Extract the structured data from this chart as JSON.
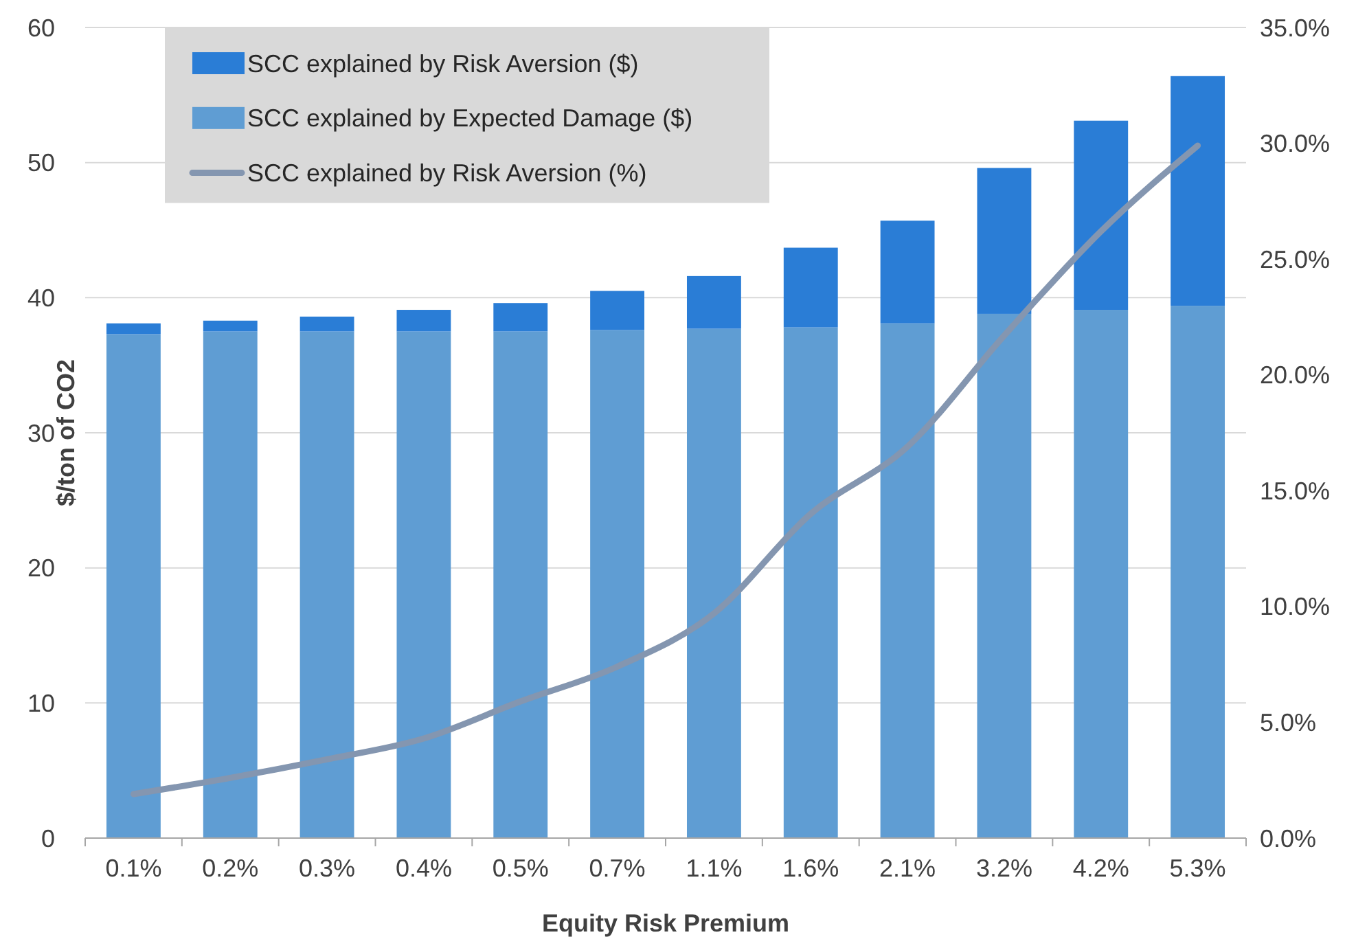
{
  "chart_data": {
    "type": "bar",
    "xlabel": "Equity Risk Premium",
    "ylabel": "$/ton of CO2",
    "categories": [
      "0.1%",
      "0.2%",
      "0.3%",
      "0.4%",
      "0.5%",
      "0.7%",
      "1.1%",
      "1.6%",
      "2.1%",
      "3.2%",
      "4.2%",
      "5.3%"
    ],
    "stacked": true,
    "series": [
      {
        "name": "SCC explained by Expected Damage ($)",
        "color": "#5f9dd3",
        "values": [
          37.3,
          37.5,
          37.5,
          37.5,
          37.5,
          37.6,
          37.7,
          37.8,
          38.1,
          38.8,
          39.1,
          39.4
        ]
      },
      {
        "name": "SCC explained by Risk Aversion ($)",
        "color": "#2a7dd6",
        "values": [
          0.8,
          0.8,
          1.1,
          1.6,
          2.1,
          2.9,
          3.9,
          5.9,
          7.6,
          10.8,
          14.0,
          17.0
        ]
      },
      {
        "name": "SCC explained by Risk Aversion (%)",
        "type": "line",
        "axis": "y2",
        "color": "#8496b0",
        "values": [
          1.9,
          2.6,
          3.4,
          4.3,
          5.9,
          7.4,
          9.7,
          14.0,
          16.9,
          21.7,
          26.2,
          29.9
        ]
      }
    ],
    "ylim": [
      0,
      60
    ],
    "yticks": [
      0,
      10,
      20,
      30,
      40,
      50,
      60
    ],
    "y2lim": [
      0,
      35
    ],
    "y2ticks": [
      {
        "value": 0,
        "label": "0.0%"
      },
      {
        "value": 5,
        "label": "5.0%"
      },
      {
        "value": 10,
        "label": "10.0%"
      },
      {
        "value": 15,
        "label": "15.0%"
      },
      {
        "value": 20,
        "label": "20.0%"
      },
      {
        "value": 25,
        "label": "25.0%"
      },
      {
        "value": 30,
        "label": "30.0%"
      },
      {
        "value": 35,
        "label": "35.0%"
      }
    ],
    "grid": "y",
    "legend": "top left"
  }
}
